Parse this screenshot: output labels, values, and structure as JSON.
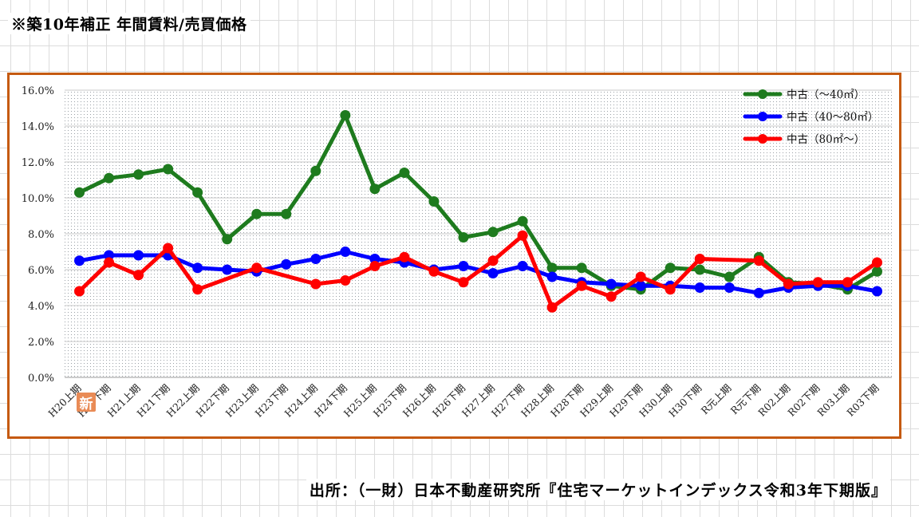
{
  "title": "※築10年補正 年間賃料/売買価格",
  "source": "出所：（一財）日本不動産研究所『住宅マーケットインデックス令和3年下期版』",
  "badge": "新",
  "chart_data": {
    "type": "line",
    "title": "",
    "xlabel": "",
    "ylabel": "",
    "ylim": [
      0,
      16
    ],
    "y_ticks": [
      0,
      2,
      4,
      6,
      8,
      10,
      12,
      14,
      16
    ],
    "y_tick_labels": [
      "0.0%",
      "2.0%",
      "4.0%",
      "6.0%",
      "8.0%",
      "10.0%",
      "12.0%",
      "14.0%",
      "16.0%"
    ],
    "grid": "dotted background with horizontal gridlines",
    "legend_position": "top-right",
    "categories": [
      "H20上期",
      "H20下期",
      "H21上期",
      "H21下期",
      "H22上期",
      "H22下期",
      "H23上期",
      "H23下期",
      "H24上期",
      "H24下期",
      "H25上期",
      "H25下期",
      "H26上期",
      "H26下期",
      "H27上期",
      "H27下期",
      "H28上期",
      "H28下期",
      "H29上期",
      "H29下期",
      "H30上期",
      "H30下期",
      "R元上期",
      "R元下期",
      "R02上期",
      "R02下期",
      "R03上期",
      "R03下期"
    ],
    "series": [
      {
        "name": "中古（～40㎡）",
        "color": "#1e7b1e",
        "values": [
          10.3,
          11.1,
          11.3,
          11.6,
          10.3,
          7.7,
          9.1,
          9.1,
          11.5,
          14.6,
          10.5,
          11.4,
          9.8,
          7.8,
          8.1,
          8.7,
          6.1,
          6.1,
          5.1,
          4.9,
          6.1,
          6.0,
          5.6,
          6.7,
          5.3,
          5.2,
          4.9,
          5.9
        ]
      },
      {
        "name": "中古（40～80㎡）",
        "color": "#0000ff",
        "values": [
          6.5,
          6.8,
          6.8,
          6.8,
          6.1,
          6.0,
          5.9,
          6.3,
          6.6,
          7.0,
          6.6,
          6.4,
          6.0,
          6.2,
          5.8,
          6.2,
          5.6,
          5.3,
          5.2,
          5.1,
          5.1,
          5.0,
          5.0,
          4.7,
          5.0,
          5.1,
          5.1,
          4.8
        ]
      },
      {
        "name": "中古（80㎡～）",
        "color": "#ff0000",
        "values": [
          4.8,
          6.4,
          5.7,
          7.2,
          4.9,
          null,
          6.1,
          null,
          5.2,
          5.4,
          6.2,
          6.7,
          5.9,
          5.3,
          6.5,
          7.9,
          3.9,
          5.1,
          4.5,
          5.6,
          4.9,
          6.6,
          null,
          6.5,
          5.2,
          5.3,
          5.3,
          6.4
        ]
      }
    ]
  }
}
